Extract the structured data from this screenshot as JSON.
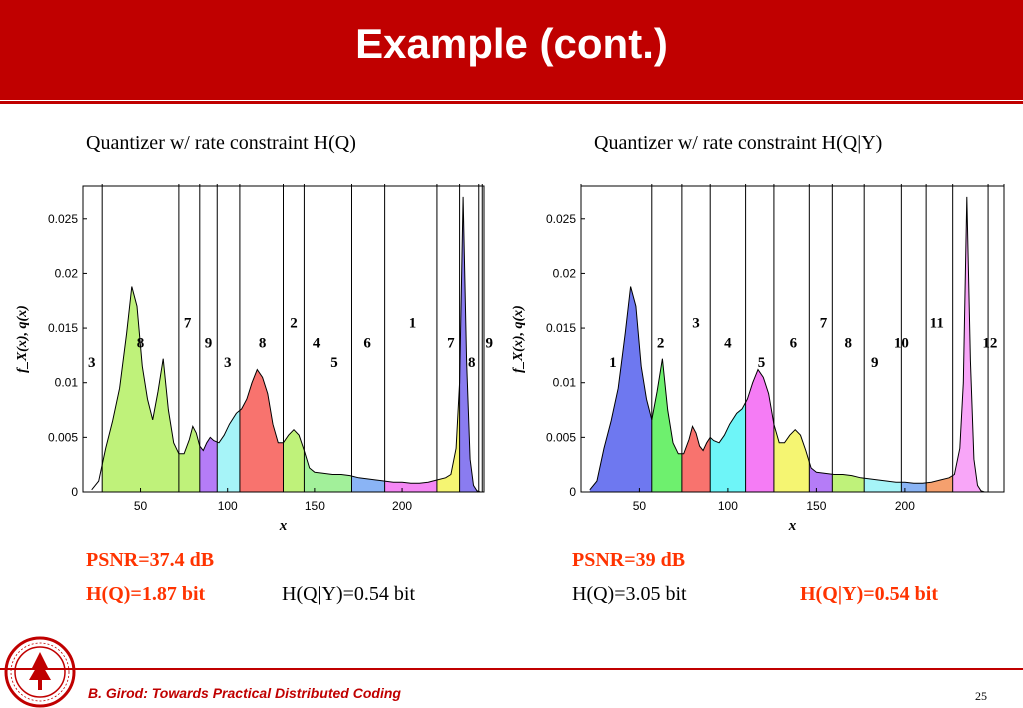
{
  "slide": {
    "title": "Example (cont.)",
    "footer": "B. Girod: Towards Practical Distributed Coding",
    "page_number": "25"
  },
  "colors": {
    "header": "#c00000",
    "highlight_text": "#ff3300"
  },
  "left": {
    "subtitle": "Quantizer w/ rate constraint H(Q)",
    "psnr": "PSNR=37.4 dB",
    "hq": "H(Q)=1.87 bit",
    "hqy": "H(Q|Y)=0.54 bit"
  },
  "right": {
    "subtitle": "Quantizer w/ rate constraint H(Q|Y)",
    "psnr": "PSNR=39 dB",
    "hq": "H(Q)=3.05 bit",
    "hqy": "H(Q|Y)=0.54 bit"
  },
  "chart_data": [
    {
      "type": "area",
      "xlabel": "x",
      "ylabel": "f_X(x), q(x)",
      "xlim": [
        17,
        247
      ],
      "ylim": [
        0,
        0.028
      ],
      "xticks": [
        50,
        100,
        150,
        200
      ],
      "yticks": [
        0,
        0.005,
        0.01,
        0.015,
        0.02,
        0.025
      ],
      "ytick_labels": [
        "0",
        "0.005",
        "0.01",
        "0.015",
        "0.02",
        "0.025"
      ],
      "density": {
        "x": [
          22,
          26,
          30,
          34,
          38,
          42,
          45,
          48,
          51,
          54,
          57,
          60,
          63,
          66,
          69,
          72,
          75,
          78,
          80,
          82,
          84,
          86,
          88,
          90,
          92,
          95,
          98,
          101,
          105,
          108,
          111,
          114,
          117,
          120,
          123,
          126,
          129,
          132,
          135,
          138,
          141,
          144,
          147,
          150,
          155,
          160,
          165,
          170,
          175,
          180,
          185,
          190,
          195,
          200,
          205,
          210,
          215,
          220,
          225,
          228,
          231,
          233,
          235,
          237,
          239,
          241,
          243,
          245
        ],
        "y": [
          0.0002,
          0.001,
          0.004,
          0.0065,
          0.0095,
          0.0145,
          0.0188,
          0.017,
          0.0115,
          0.0085,
          0.0066,
          0.0092,
          0.0122,
          0.0075,
          0.0045,
          0.0035,
          0.0035,
          0.0048,
          0.006,
          0.0054,
          0.0042,
          0.0038,
          0.0045,
          0.005,
          0.0047,
          0.0045,
          0.0052,
          0.0062,
          0.0072,
          0.0076,
          0.0085,
          0.01,
          0.0112,
          0.0105,
          0.009,
          0.0062,
          0.0045,
          0.0045,
          0.0052,
          0.0057,
          0.0052,
          0.0038,
          0.0022,
          0.0018,
          0.0017,
          0.0016,
          0.0016,
          0.0015,
          0.0013,
          0.0012,
          0.0011,
          0.001,
          0.0009,
          0.0009,
          0.0008,
          0.0008,
          0.0009,
          0.0011,
          0.0013,
          0.0016,
          0.004,
          0.01,
          0.027,
          0.012,
          0.003,
          0.0006,
          0.0001,
          0.0
        ]
      },
      "boundaries": [
        28,
        72,
        84,
        94,
        107,
        132,
        144,
        171,
        190,
        220,
        233,
        244,
        246
      ],
      "cell_colors": [
        "#bff27a",
        "#bff27a",
        "#b57cf7",
        "#a6f4f8",
        "#f8736e",
        "#bff27a",
        "#a2f09a",
        "#8ab4f5",
        "#f588f5",
        "#f5f572",
        "#8a7cf0",
        "#bff27a",
        "#bff27a"
      ],
      "region_labels": [
        {
          "text": "3",
          "x": 22,
          "y": 0.0119
        },
        {
          "text": "8",
          "x": 50,
          "y": 0.0137
        },
        {
          "text": "7",
          "x": 77,
          "y": 0.0155
        },
        {
          "text": "9",
          "x": 89,
          "y": 0.0137
        },
        {
          "text": "3",
          "x": 100,
          "y": 0.0119
        },
        {
          "text": "8",
          "x": 120,
          "y": 0.0137
        },
        {
          "text": "2",
          "x": 138,
          "y": 0.0155
        },
        {
          "text": "4",
          "x": 151,
          "y": 0.0137
        },
        {
          "text": "5",
          "x": 161,
          "y": 0.0119
        },
        {
          "text": "6",
          "x": 180,
          "y": 0.0137
        },
        {
          "text": "1",
          "x": 206,
          "y": 0.0155
        },
        {
          "text": "7",
          "x": 228,
          "y": 0.0137
        },
        {
          "text": "8",
          "x": 240,
          "y": 0.0119
        },
        {
          "text": "9",
          "x": 250,
          "y": 0.0137
        }
      ]
    },
    {
      "type": "area",
      "xlabel": "x",
      "ylabel": "f_X(x), q(x)",
      "xlim": [
        17,
        256
      ],
      "ylim": [
        0,
        0.028
      ],
      "xticks": [
        50,
        100,
        150,
        200
      ],
      "yticks": [
        0,
        0.005,
        0.01,
        0.015,
        0.02,
        0.025
      ],
      "ytick_labels": [
        "0",
        "0.005",
        "0.01",
        "0.015",
        "0.02",
        "0.025"
      ],
      "density": {
        "x": [
          22,
          26,
          30,
          34,
          38,
          42,
          45,
          48,
          51,
          54,
          57,
          60,
          63,
          66,
          69,
          72,
          75,
          78,
          80,
          82,
          84,
          86,
          88,
          90,
          92,
          95,
          98,
          101,
          105,
          108,
          111,
          114,
          117,
          120,
          123,
          126,
          129,
          132,
          135,
          138,
          141,
          144,
          147,
          150,
          155,
          160,
          165,
          170,
          175,
          180,
          185,
          190,
          195,
          200,
          205,
          210,
          215,
          220,
          225,
          228,
          231,
          233,
          235,
          237,
          239,
          241,
          243,
          245
        ],
        "y": [
          0.0002,
          0.001,
          0.004,
          0.0065,
          0.0095,
          0.0145,
          0.0188,
          0.017,
          0.0115,
          0.0085,
          0.0066,
          0.0092,
          0.0122,
          0.0075,
          0.0045,
          0.0035,
          0.0035,
          0.0048,
          0.006,
          0.0054,
          0.0042,
          0.0038,
          0.0045,
          0.005,
          0.0047,
          0.0045,
          0.0052,
          0.0062,
          0.0072,
          0.0076,
          0.0085,
          0.01,
          0.0112,
          0.0105,
          0.009,
          0.0062,
          0.0045,
          0.0045,
          0.0052,
          0.0057,
          0.0052,
          0.0038,
          0.0022,
          0.0018,
          0.0017,
          0.0016,
          0.0016,
          0.0015,
          0.0013,
          0.0012,
          0.0011,
          0.001,
          0.0009,
          0.0009,
          0.0008,
          0.0008,
          0.0009,
          0.0011,
          0.0013,
          0.0016,
          0.004,
          0.01,
          0.027,
          0.012,
          0.003,
          0.0006,
          0.0001,
          0.0
        ]
      },
      "boundaries": [
        17,
        57,
        74,
        90,
        110,
        126,
        146,
        159,
        177,
        198,
        212,
        227,
        247,
        256
      ],
      "cell_colors": [
        "#6e78f0",
        "#6ef06e",
        "#f8736e",
        "#6ef5f8",
        "#f57cf5",
        "#f5f572",
        "#b57cf7",
        "#bff27a",
        "#a6f4f8",
        "#8ab4f5",
        "#f5a06e",
        "#f8a6f8",
        "#f8a6f8"
      ],
      "region_labels": [
        {
          "text": "1",
          "x": 35,
          "y": 0.0119
        },
        {
          "text": "2",
          "x": 62,
          "y": 0.0137
        },
        {
          "text": "3",
          "x": 82,
          "y": 0.0155
        },
        {
          "text": "4",
          "x": 100,
          "y": 0.0137
        },
        {
          "text": "5",
          "x": 119,
          "y": 0.0119
        },
        {
          "text": "6",
          "x": 137,
          "y": 0.0137
        },
        {
          "text": "7",
          "x": 154,
          "y": 0.0155
        },
        {
          "text": "8",
          "x": 168,
          "y": 0.0137
        },
        {
          "text": "9",
          "x": 183,
          "y": 0.0119
        },
        {
          "text": "10",
          "x": 198,
          "y": 0.0137
        },
        {
          "text": "11",
          "x": 218,
          "y": 0.0155
        },
        {
          "text": "12",
          "x": 248,
          "y": 0.0137
        }
      ]
    }
  ]
}
